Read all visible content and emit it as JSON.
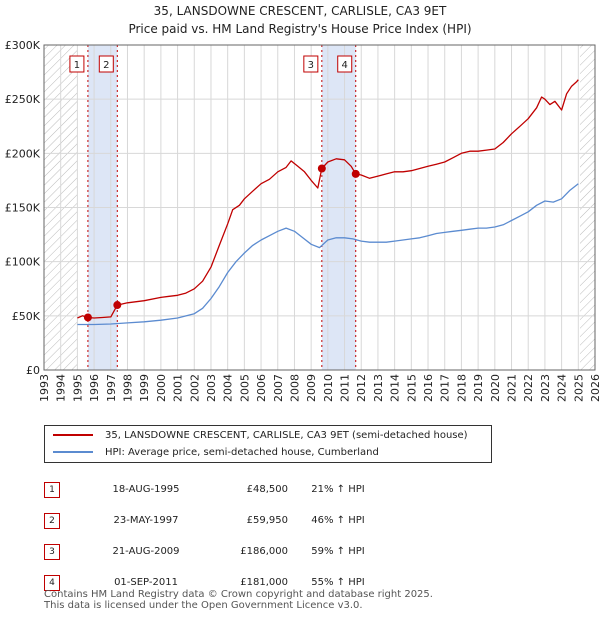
{
  "header": {
    "title_line1": "35, LANSDOWNE CRESCENT, CARLISLE, CA3 9ET",
    "title_line2": "Price paid vs. HM Land Registry's House Price Index (HPI)"
  },
  "chart_data": {
    "type": "line",
    "title": "35, LANSDOWNE CRESCENT, CARLISLE, CA3 9ET — Price paid vs. HM Land Registry's House Price Index (HPI)",
    "xlim": [
      1993,
      2026
    ],
    "ylim": [
      0,
      300000
    ],
    "xticks": [
      1993,
      1994,
      1995,
      1996,
      1997,
      1998,
      1999,
      2000,
      2001,
      2002,
      2003,
      2004,
      2005,
      2006,
      2007,
      2008,
      2009,
      2010,
      2011,
      2012,
      2013,
      2014,
      2015,
      2016,
      2017,
      2018,
      2019,
      2020,
      2021,
      2022,
      2023,
      2024,
      2025,
      2026
    ],
    "yticks": [
      {
        "value": 0,
        "label": "£0"
      },
      {
        "value": 50000,
        "label": "£50K"
      },
      {
        "value": 100000,
        "label": "£100K"
      },
      {
        "value": 150000,
        "label": "£150K"
      },
      {
        "value": 200000,
        "label": "£200K"
      },
      {
        "value": 250000,
        "label": "£250K"
      },
      {
        "value": 300000,
        "label": "£300K"
      }
    ],
    "grid": true,
    "hatched_ranges": [
      [
        1993,
        1995.0
      ],
      [
        2025.1,
        2026
      ]
    ],
    "shaded_ranges": [
      [
        1995.63,
        1997.39
      ],
      [
        2009.64,
        2011.67
      ]
    ],
    "series": [
      {
        "name": "35, LANSDOWNE CRESCENT, CARLISLE, CA3 9ET (semi-detached house)",
        "color": "#c00000",
        "x": [
          1995.0,
          1995.3,
          1995.63,
          1996.0,
          1996.5,
          1997.0,
          1997.39,
          1998.0,
          1999.0,
          2000.0,
          2000.5,
          2001.0,
          2001.5,
          2002.0,
          2002.5,
          2003.0,
          2003.5,
          2004.0,
          2004.3,
          2004.7,
          2005.0,
          2005.5,
          2006.0,
          2006.5,
          2007.0,
          2007.5,
          2007.8,
          2008.2,
          2008.6,
          2009.0,
          2009.4,
          2009.64,
          2010.0,
          2010.5,
          2011.0,
          2011.4,
          2011.67,
          2012.0,
          2012.5,
          2013.0,
          2013.5,
          2014.0,
          2014.5,
          2015.0,
          2015.5,
          2016.0,
          2016.5,
          2017.0,
          2017.5,
          2018.0,
          2018.5,
          2019.0,
          2019.5,
          2020.0,
          2020.5,
          2021.0,
          2021.5,
          2022.0,
          2022.5,
          2022.8,
          2023.0,
          2023.3,
          2023.6,
          2024.0,
          2024.3,
          2024.6,
          2024.9,
          2025.0
        ],
        "values": [
          48000,
          50000,
          48500,
          48000,
          48500,
          49000,
          59950,
          62000,
          64000,
          67000,
          68000,
          69000,
          71000,
          75000,
          82000,
          95000,
          115000,
          135000,
          148000,
          152000,
          158000,
          165000,
          172000,
          176000,
          183000,
          187000,
          193000,
          188000,
          183000,
          175000,
          168000,
          186000,
          192000,
          195000,
          194000,
          188000,
          181000,
          180000,
          177000,
          179000,
          181000,
          183000,
          183000,
          184000,
          186000,
          188000,
          190000,
          192000,
          196000,
          200000,
          202000,
          202000,
          203000,
          204000,
          210000,
          218000,
          225000,
          232000,
          242000,
          252000,
          250000,
          245000,
          248000,
          240000,
          255000,
          262000,
          266000,
          268000
        ]
      },
      {
        "name": "HPI: Average price, semi-detached house, Cumberland",
        "color": "#5b8bd0",
        "x": [
          1995.0,
          1996.0,
          1997.0,
          1998.0,
          1999.0,
          2000.0,
          2001.0,
          2002.0,
          2002.5,
          2003.0,
          2003.5,
          2004.0,
          2004.5,
          2005.0,
          2005.5,
          2006.0,
          2006.5,
          2007.0,
          2007.5,
          2008.0,
          2008.5,
          2009.0,
          2009.5,
          2010.0,
          2010.5,
          2011.0,
          2011.5,
          2012.0,
          2012.5,
          2013.0,
          2013.5,
          2014.0,
          2014.5,
          2015.0,
          2015.5,
          2016.0,
          2016.5,
          2017.0,
          2017.5,
          2018.0,
          2018.5,
          2019.0,
          2019.5,
          2020.0,
          2020.5,
          2021.0,
          2021.5,
          2022.0,
          2022.5,
          2023.0,
          2023.5,
          2024.0,
          2024.5,
          2025.0
        ],
        "values": [
          42000,
          42000,
          42500,
          43500,
          44500,
          46000,
          48000,
          52000,
          57000,
          66000,
          77000,
          90000,
          100000,
          108000,
          115000,
          120000,
          124000,
          128000,
          131000,
          128000,
          122000,
          116000,
          113000,
          120000,
          122000,
          122000,
          121000,
          119000,
          118000,
          118000,
          118000,
          119000,
          120000,
          121000,
          122000,
          124000,
          126000,
          127000,
          128000,
          129000,
          130000,
          131000,
          131000,
          132000,
          134000,
          138000,
          142000,
          146000,
          152000,
          156000,
          155000,
          158000,
          166000,
          172000
        ]
      }
    ],
    "sales": [
      {
        "id": "1",
        "x": 1995.63,
        "value": 48500
      },
      {
        "id": "2",
        "x": 1997.39,
        "value": 59950
      },
      {
        "id": "3",
        "x": 2009.64,
        "value": 186000
      },
      {
        "id": "4",
        "x": 2011.67,
        "value": 181000
      }
    ]
  },
  "legend": {
    "items": [
      {
        "label": "35, LANSDOWNE CRESCENT, CARLISLE, CA3 9ET (semi-detached house)",
        "color": "#c00000"
      },
      {
        "label": "HPI: Average price, semi-detached house, Cumberland",
        "color": "#5b8bd0"
      }
    ]
  },
  "sales_table": [
    {
      "num": "1",
      "date": "18-AUG-1995",
      "price": "£48,500",
      "hpi": "21% ↑ HPI"
    },
    {
      "num": "2",
      "date": "23-MAY-1997",
      "price": "£59,950",
      "hpi": "46% ↑ HPI"
    },
    {
      "num": "3",
      "date": "21-AUG-2009",
      "price": "£186,000",
      "hpi": "59% ↑ HPI"
    },
    {
      "num": "4",
      "date": "01-SEP-2011",
      "price": "£181,000",
      "hpi": "55% ↑ HPI"
    }
  ],
  "footer": {
    "line1": "Contains HM Land Registry data © Crown copyright and database right 2025.",
    "line2": "This data is licensed under the Open Government Licence v3.0."
  },
  "colors": {
    "accent": "#c00000",
    "hpi": "#5b8bd0",
    "shade": "#dde6f6",
    "grid": "#d8d8d8"
  }
}
